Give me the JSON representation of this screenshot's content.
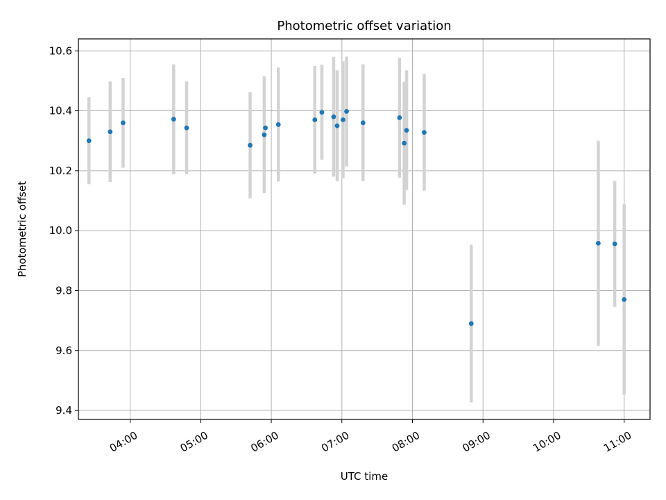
{
  "chart_data": {
    "type": "scatter",
    "title": "Photometric offset variation",
    "xlabel": "UTC time",
    "ylabel": "Photometric offset",
    "x_unit": "UTC time (HH:MM)",
    "xlim": [
      "03:16",
      "11:22"
    ],
    "ylim": [
      9.37,
      10.64
    ],
    "xticks": [
      "04:00",
      "05:00",
      "06:00",
      "07:00",
      "08:00",
      "09:00",
      "10:00",
      "11:00"
    ],
    "yticks": [
      "9.4",
      "9.6",
      "9.8",
      "10.0",
      "10.2",
      "10.4",
      "10.6"
    ],
    "grid": true,
    "marker_color": "#1f77b4",
    "errorbar_color": "#d3d3d3",
    "series": [
      {
        "points": [
          {
            "x": "03:25",
            "y": 10.3,
            "yerr": 0.145
          },
          {
            "x": "03:43",
            "y": 10.33,
            "yerr": 0.168
          },
          {
            "x": "03:54",
            "y": 10.36,
            "yerr": 0.15
          },
          {
            "x": "04:37",
            "y": 10.372,
            "yerr": 0.183
          },
          {
            "x": "04:48",
            "y": 10.343,
            "yerr": 0.155
          },
          {
            "x": "05:42",
            "y": 10.285,
            "yerr": 0.177
          },
          {
            "x": "05:54",
            "y": 10.32,
            "yerr": 0.195
          },
          {
            "x": "05:55",
            "y": 10.343,
            "yerr": 0.0
          },
          {
            "x": "06:06",
            "y": 10.354,
            "yerr": 0.19
          },
          {
            "x": "06:37",
            "y": 10.37,
            "yerr": 0.18
          },
          {
            "x": "06:43",
            "y": 10.395,
            "yerr": 0.158
          },
          {
            "x": "06:53",
            "y": 10.38,
            "yerr": 0.2
          },
          {
            "x": "06:56",
            "y": 10.35,
            "yerr": 0.185
          },
          {
            "x": "07:01",
            "y": 10.37,
            "yerr": 0.195
          },
          {
            "x": "07:04",
            "y": 10.398,
            "yerr": 0.183
          },
          {
            "x": "07:18",
            "y": 10.36,
            "yerr": 0.195
          },
          {
            "x": "07:49",
            "y": 10.377,
            "yerr": 0.2
          },
          {
            "x": "07:53",
            "y": 10.292,
            "yerr": 0.205
          },
          {
            "x": "07:55",
            "y": 10.335,
            "yerr": 0.2
          },
          {
            "x": "08:10",
            "y": 10.328,
            "yerr": 0.195
          },
          {
            "x": "08:50",
            "y": 9.69,
            "yerr": 0.263
          },
          {
            "x": "10:38",
            "y": 9.958,
            "yerr": 0.342
          },
          {
            "x": "10:52",
            "y": 9.956,
            "yerr": 0.21
          },
          {
            "x": "11:00",
            "y": 9.77,
            "yerr": 0.318
          }
        ]
      }
    ]
  }
}
